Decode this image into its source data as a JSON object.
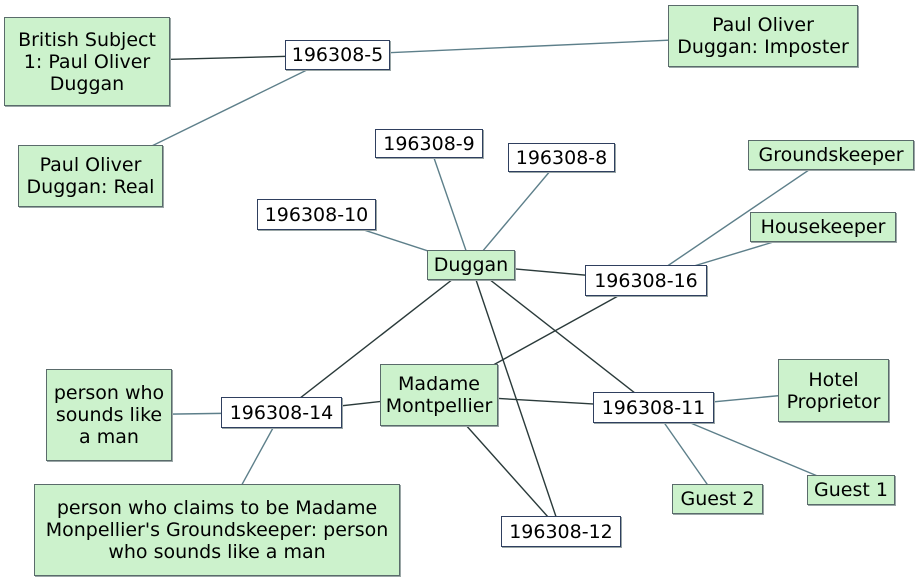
{
  "colors": {
    "entity_fill": "#ccf2cc",
    "document_fill": "#ffffff",
    "edge_dark": "#2a3a3a",
    "edge_light": "#5d7f8a"
  },
  "nodes": {
    "british_subject": {
      "label": "British Subject 1: Paul Oliver Duggan",
      "kind": "entity"
    },
    "paul_imposter": {
      "label": "Paul Oliver Duggan: Imposter",
      "kind": "entity"
    },
    "paul_real": {
      "label": "Paul Oliver Duggan: Real",
      "kind": "entity"
    },
    "groundskeeper": {
      "label": "Groundskeeper",
      "kind": "entity"
    },
    "housekeeper": {
      "label": "Housekeeper",
      "kind": "entity"
    },
    "duggan": {
      "label": "Duggan",
      "kind": "entity"
    },
    "person_man": {
      "label": "person who sounds like a man",
      "kind": "entity"
    },
    "madame": {
      "label": "Madame Montpellier",
      "kind": "entity"
    },
    "hotel": {
      "label": "Hotel Proprietor",
      "kind": "entity"
    },
    "guest2": {
      "label": "Guest 2",
      "kind": "entity"
    },
    "guest1": {
      "label": "Guest 1",
      "kind": "entity"
    },
    "person_claims": {
      "label": "person who claims to be Madame Monpellier's Groundskeeper: person who sounds like a man",
      "kind": "entity"
    },
    "d5": {
      "label": "196308-5",
      "kind": "document"
    },
    "d9": {
      "label": "196308-9",
      "kind": "document"
    },
    "d8": {
      "label": "196308-8",
      "kind": "document"
    },
    "d10": {
      "label": "196308-10",
      "kind": "document"
    },
    "d16": {
      "label": "196308-16",
      "kind": "document"
    },
    "d14": {
      "label": "196308-14",
      "kind": "document"
    },
    "d11": {
      "label": "196308-11",
      "kind": "document"
    },
    "d12": {
      "label": "196308-12",
      "kind": "document"
    }
  },
  "edges": [
    {
      "from": "british_subject",
      "to": "d5",
      "tone": "dark"
    },
    {
      "from": "d5",
      "to": "paul_imposter",
      "tone": "light"
    },
    {
      "from": "d5",
      "to": "paul_real",
      "tone": "light"
    },
    {
      "from": "d9",
      "to": "duggan",
      "tone": "light"
    },
    {
      "from": "d8",
      "to": "duggan",
      "tone": "light"
    },
    {
      "from": "d10",
      "to": "duggan",
      "tone": "light"
    },
    {
      "from": "duggan",
      "to": "d16",
      "tone": "dark"
    },
    {
      "from": "duggan",
      "to": "d14",
      "tone": "dark"
    },
    {
      "from": "duggan",
      "to": "d11",
      "tone": "dark"
    },
    {
      "from": "duggan",
      "to": "d12",
      "tone": "dark"
    },
    {
      "from": "d16",
      "to": "groundskeeper",
      "tone": "light"
    },
    {
      "from": "d16",
      "to": "housekeeper",
      "tone": "light"
    },
    {
      "from": "d16",
      "to": "madame",
      "tone": "dark"
    },
    {
      "from": "d14",
      "to": "madame",
      "tone": "dark"
    },
    {
      "from": "d14",
      "to": "person_man",
      "tone": "light"
    },
    {
      "from": "d14",
      "to": "person_claims",
      "tone": "light"
    },
    {
      "from": "madame",
      "to": "d11",
      "tone": "dark"
    },
    {
      "from": "madame",
      "to": "d12",
      "tone": "dark"
    },
    {
      "from": "d11",
      "to": "hotel",
      "tone": "light"
    },
    {
      "from": "d11",
      "to": "guest2",
      "tone": "light"
    },
    {
      "from": "d11",
      "to": "guest1",
      "tone": "light"
    }
  ]
}
